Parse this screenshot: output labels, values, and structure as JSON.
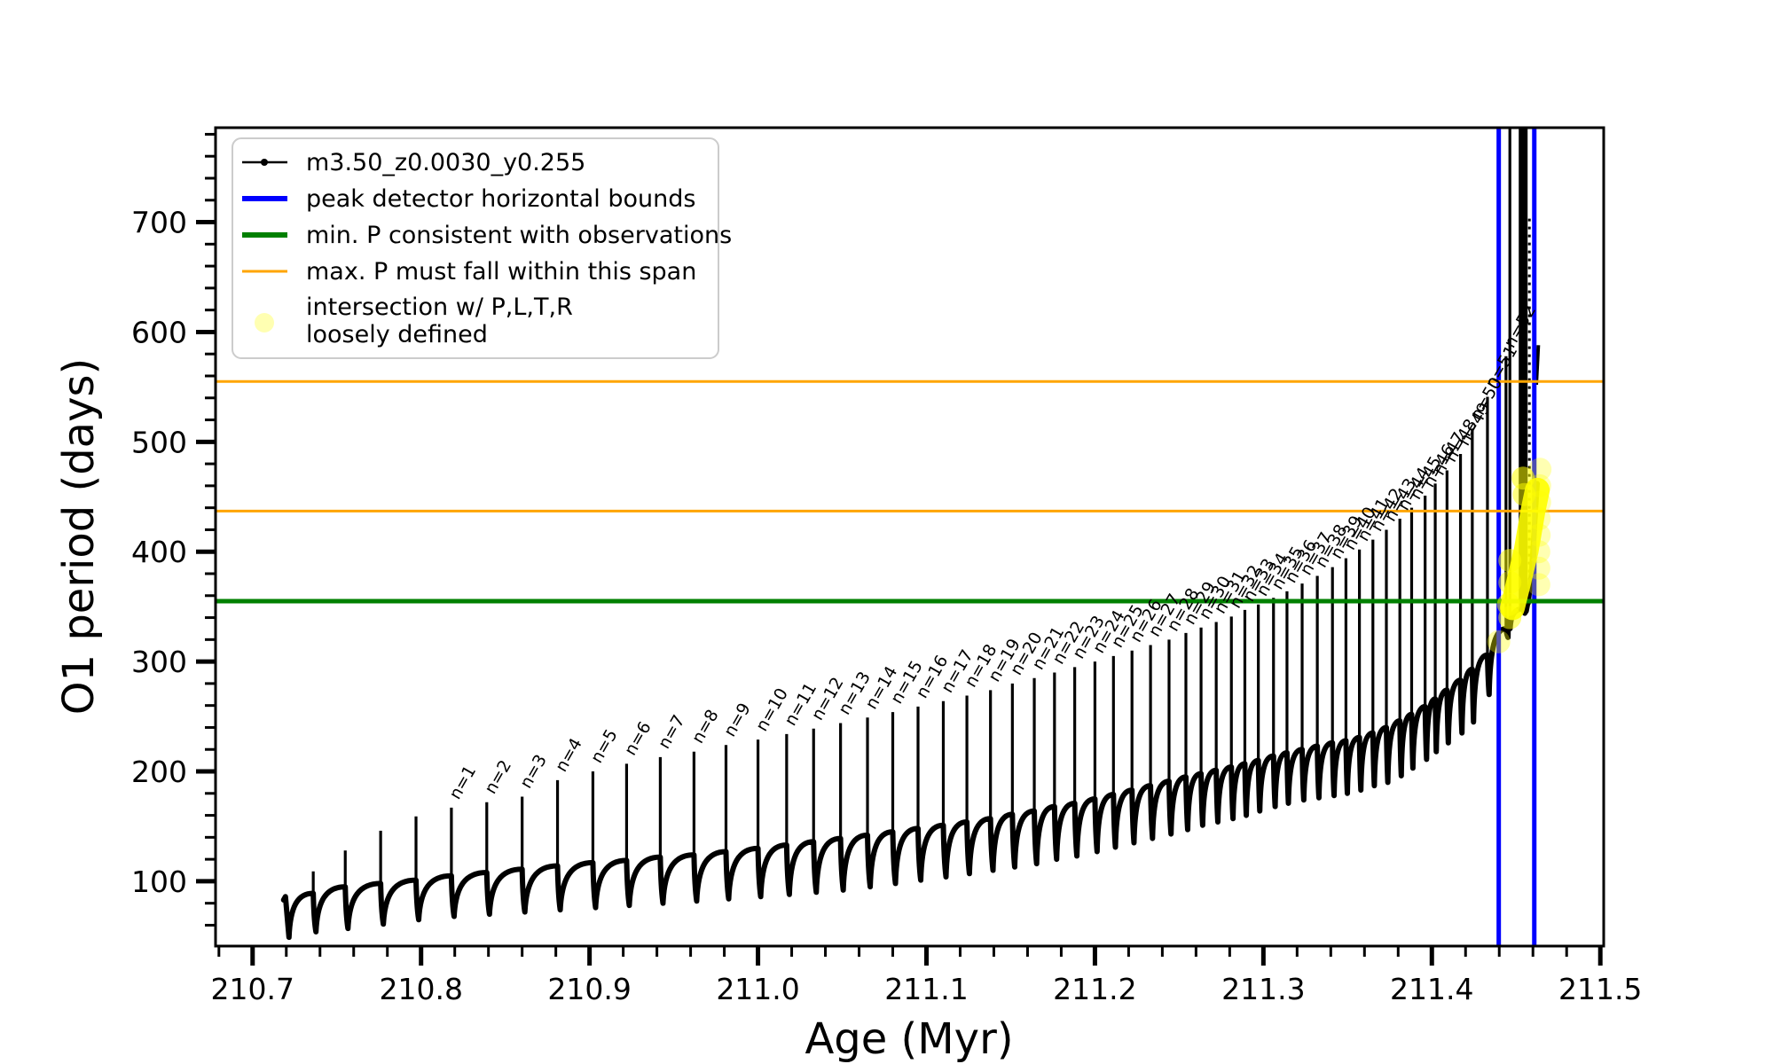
{
  "chart_data": {
    "type": "line",
    "title": "",
    "xlabel": "Age (Myr)",
    "ylabel": "O1 period (days)",
    "xlim": [
      210.678,
      211.502
    ],
    "ylim": [
      41,
      786
    ],
    "grid": false,
    "xticks": {
      "values": [
        210.7,
        210.8,
        210.9,
        211.0,
        211.1,
        211.2,
        211.3,
        211.4,
        211.5
      ],
      "labels": [
        "210.7",
        "210.8",
        "210.9",
        "211.0",
        "211.1",
        "211.2",
        "211.3",
        "211.4",
        "211.5"
      ]
    },
    "yticks": {
      "values": [
        100,
        200,
        300,
        400,
        500,
        600,
        700
      ],
      "labels": [
        "100",
        "200",
        "300",
        "400",
        "500",
        "600",
        "700"
      ]
    },
    "x_minor_step": 0.02,
    "y_minor_step": 20,
    "series_name": "m3.50_z0.0030_y0.255",
    "series_color": "#000000",
    "start": {
      "x": 210.7184,
      "y": 83,
      "bump_x": 210.7195,
      "bump_y": 86,
      "dip_x": 210.7216,
      "dip_y": 49
    },
    "cycles": [
      {
        "n": 0,
        "x": 210.736,
        "base": 89,
        "peak": 109,
        "dip": 54
      },
      {
        "n": 0,
        "x": 210.755,
        "base": 95,
        "peak": 128,
        "dip": 57
      },
      {
        "n": 0,
        "x": 210.776,
        "base": 98,
        "peak": 146,
        "dip": 61
      },
      {
        "n": 0,
        "x": 210.797,
        "base": 101,
        "peak": 159,
        "dip": 65
      },
      {
        "n": 1,
        "x": 210.818,
        "base": 105,
        "peak": 167,
        "dip": 68
      },
      {
        "n": 2,
        "x": 210.839,
        "base": 108,
        "peak": 172,
        "dip": 70
      },
      {
        "n": 3,
        "x": 210.86,
        "base": 111,
        "peak": 177,
        "dip": 72
      },
      {
        "n": 4,
        "x": 210.881,
        "base": 114,
        "peak": 192,
        "dip": 74
      },
      {
        "n": 5,
        "x": 210.902,
        "base": 117,
        "peak": 200,
        "dip": 76
      },
      {
        "n": 6,
        "x": 210.922,
        "base": 119,
        "peak": 207,
        "dip": 78
      },
      {
        "n": 7,
        "x": 210.942,
        "base": 122,
        "peak": 213,
        "dip": 80
      },
      {
        "n": 8,
        "x": 210.962,
        "base": 124,
        "peak": 218,
        "dip": 82
      },
      {
        "n": 9,
        "x": 210.981,
        "base": 127,
        "peak": 224,
        "dip": 84
      },
      {
        "n": 10,
        "x": 211.0,
        "base": 130,
        "peak": 229,
        "dip": 86
      },
      {
        "n": 11,
        "x": 211.017,
        "base": 133,
        "peak": 234,
        "dip": 88
      },
      {
        "n": 12,
        "x": 211.033,
        "base": 136,
        "peak": 239,
        "dip": 90
      },
      {
        "n": 13,
        "x": 211.049,
        "base": 139,
        "peak": 244,
        "dip": 92
      },
      {
        "n": 14,
        "x": 211.065,
        "base": 142,
        "peak": 249,
        "dip": 95
      },
      {
        "n": 15,
        "x": 211.08,
        "base": 145,
        "peak": 254,
        "dip": 98
      },
      {
        "n": 16,
        "x": 211.095,
        "base": 148,
        "peak": 259,
        "dip": 101
      },
      {
        "n": 17,
        "x": 211.11,
        "base": 151,
        "peak": 264,
        "dip": 104
      },
      {
        "n": 18,
        "x": 211.124,
        "base": 154,
        "peak": 269,
        "dip": 107
      },
      {
        "n": 19,
        "x": 211.138,
        "base": 157,
        "peak": 274,
        "dip": 110
      },
      {
        "n": 20,
        "x": 211.151,
        "base": 161,
        "peak": 280,
        "dip": 113
      },
      {
        "n": 21,
        "x": 211.164,
        "base": 164,
        "peak": 285,
        "dip": 116
      },
      {
        "n": 22,
        "x": 211.176,
        "base": 168,
        "peak": 290,
        "dip": 120
      },
      {
        "n": 23,
        "x": 211.188,
        "base": 171,
        "peak": 295,
        "dip": 123
      },
      {
        "n": 24,
        "x": 211.2,
        "base": 175,
        "peak": 300,
        "dip": 127
      },
      {
        "n": 25,
        "x": 211.211,
        "base": 179,
        "peak": 305,
        "dip": 131
      },
      {
        "n": 26,
        "x": 211.222,
        "base": 183,
        "peak": 310,
        "dip": 135
      },
      {
        "n": 27,
        "x": 211.233,
        "base": 187,
        "peak": 315,
        "dip": 139
      },
      {
        "n": 28,
        "x": 211.244,
        "base": 191,
        "peak": 320,
        "dip": 143
      },
      {
        "n": 29,
        "x": 211.254,
        "base": 195,
        "peak": 326,
        "dip": 147
      },
      {
        "n": 30,
        "x": 211.263,
        "base": 198,
        "peak": 331,
        "dip": 151
      },
      {
        "n": 31,
        "x": 211.272,
        "base": 201,
        "peak": 336,
        "dip": 154
      },
      {
        "n": 32,
        "x": 211.281,
        "base": 204,
        "peak": 341,
        "dip": 157
      },
      {
        "n": 33,
        "x": 211.289,
        "base": 207,
        "peak": 347,
        "dip": 160
      },
      {
        "n": 34,
        "x": 211.297,
        "base": 210,
        "peak": 352,
        "dip": 164
      },
      {
        "n": 35,
        "x": 211.306,
        "base": 214,
        "peak": 358,
        "dip": 168
      },
      {
        "n": 36,
        "x": 211.314,
        "base": 217,
        "peak": 364,
        "dip": 171
      },
      {
        "n": 37,
        "x": 211.323,
        "base": 220,
        "peak": 371,
        "dip": 174
      },
      {
        "n": 38,
        "x": 211.332,
        "base": 223,
        "peak": 378,
        "dip": 176
      },
      {
        "n": 39,
        "x": 211.341,
        "base": 226,
        "peak": 386,
        "dip": 178
      },
      {
        "n": 40,
        "x": 211.349,
        "base": 228,
        "peak": 394,
        "dip": 180
      },
      {
        "n": 41,
        "x": 211.357,
        "base": 231,
        "peak": 402,
        "dip": 183
      },
      {
        "n": 42,
        "x": 211.365,
        "base": 235,
        "peak": 411,
        "dip": 187
      },
      {
        "n": 43,
        "x": 211.373,
        "base": 240,
        "peak": 420,
        "dip": 190
      },
      {
        "n": 44,
        "x": 211.381,
        "base": 246,
        "peak": 430,
        "dip": 196
      },
      {
        "n": 45,
        "x": 211.388,
        "base": 252,
        "peak": 440,
        "dip": 203
      },
      {
        "n": 46,
        "x": 211.396,
        "base": 259,
        "peak": 451,
        "dip": 211
      },
      {
        "n": 47,
        "x": 211.402,
        "base": 266,
        "peak": 462,
        "dip": 218
      },
      {
        "n": 48,
        "x": 211.409,
        "base": 274,
        "peak": 474,
        "dip": 226
      },
      {
        "n": 49,
        "x": 211.417,
        "base": 283,
        "peak": 489,
        "dip": 235
      },
      {
        "n": 50,
        "x": 211.424,
        "base": 293,
        "peak": 512,
        "dip": 245
      },
      {
        "n": 51,
        "x": 211.433,
        "base": 306,
        "peak": 541,
        "dip": 270
      },
      {
        "n": 52,
        "x": 211.444,
        "base": 330,
        "peak": 578,
        "dip": 322
      },
      {
        "n": 0,
        "x": 211.4463,
        "base": 338,
        "peak": 800,
        "dip": 330
      },
      {
        "n": 0,
        "x": 211.4542,
        "base": 348,
        "peak": 800,
        "dip": 344,
        "heavy": true
      }
    ],
    "tail": [
      [
        211.456,
        346
      ],
      [
        211.4575,
        358
      ],
      [
        211.459,
        378
      ],
      [
        211.4605,
        412
      ],
      [
        211.4615,
        438
      ],
      [
        211.4625,
        462
      ]
    ],
    "fragments": [
      [
        [
          211.462,
          552
        ],
        [
          211.4632,
          588
        ]
      ]
    ],
    "hlines": [
      {
        "y": 555,
        "color": "#ffa500",
        "width": 3,
        "name": "max-P-span-upper-line"
      },
      {
        "y": 437,
        "color": "#ffa500",
        "width": 3,
        "name": "max-P-span-lower-line"
      },
      {
        "y": 355,
        "color": "#008000",
        "width": 5,
        "name": "min-P-line"
      }
    ],
    "vlines": [
      {
        "x": 211.4397,
        "color": "#0000ff",
        "width": 5,
        "name": "peak-bound-left-line"
      },
      {
        "x": 211.4608,
        "color": "#0000ff",
        "width": 5,
        "name": "peak-bound-right-line"
      }
    ],
    "highlight": {
      "color": "#ffff00",
      "stripe": [
        [
          211.4478,
          349
        ],
        [
          211.4515,
          372
        ],
        [
          211.456,
          401
        ],
        [
          211.46,
          437
        ],
        [
          211.4626,
          456
        ]
      ],
      "stripe_width": 28,
      "stripe_opacity": 0.9,
      "dot_radius": 13,
      "dots": [
        [
          211.4397,
          318,
          0.35
        ],
        [
          211.4455,
          352,
          0.5
        ],
        [
          211.4463,
          392,
          0.5
        ],
        [
          211.4463,
          372,
          0.45
        ],
        [
          211.4463,
          340,
          0.5
        ],
        [
          211.4542,
          467,
          0.55
        ],
        [
          211.4548,
          452,
          0.5
        ],
        [
          211.4635,
          370,
          0.3
        ],
        [
          211.4635,
          385,
          0.3
        ],
        [
          211.4635,
          400,
          0.3
        ],
        [
          211.4637,
          415,
          0.3
        ],
        [
          211.4637,
          430,
          0.3
        ],
        [
          211.464,
          445,
          0.3
        ],
        [
          211.464,
          460,
          0.3
        ],
        [
          211.4642,
          475,
          0.3
        ]
      ]
    }
  },
  "legend": {
    "entries": [
      {
        "label": "m3.50_z0.0030_y0.255",
        "type": "line-marker",
        "color": "#000000"
      },
      {
        "label": "peak detector horizontal bounds",
        "type": "line",
        "color": "#0000ff"
      },
      {
        "label": "min. P consistent with observations",
        "type": "line",
        "color": "#008000"
      },
      {
        "label": "max. P must fall within this span",
        "type": "line",
        "color": "#ffa500"
      },
      {
        "label": "intersection w/ P,L,T,R loosely defined",
        "label_line1": "intersection w/ P,L,T,R",
        "label_line2": "loosely defined",
        "type": "marker",
        "color": "#ffff00",
        "alpha": 0.3
      }
    ]
  }
}
